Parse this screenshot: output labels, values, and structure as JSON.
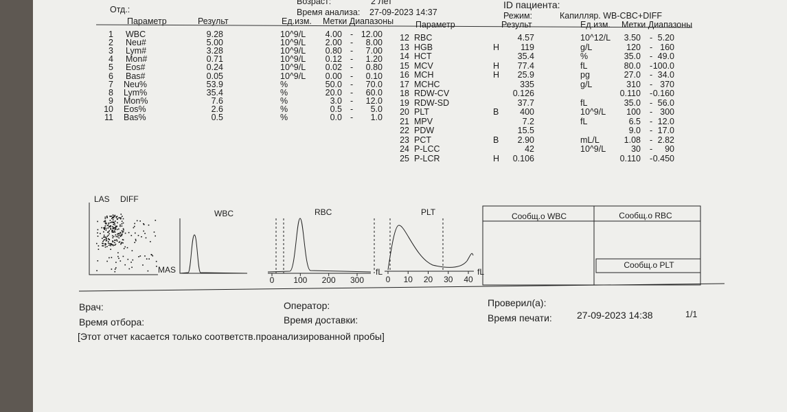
{
  "header": {
    "age_label": "Возраст:",
    "age": "2 Лет",
    "patient_id_label": "ID пациента:",
    "dept_label": "Отд.:",
    "analysis_time_label": "Время анализа:",
    "analysis_time": "27-09-2023 14:37",
    "mode_label": "Режим:",
    "mode": "Капилляр. WB-CBC+DIFF"
  },
  "columns": [
    "Параметр",
    "Результ",
    "Ед.изм.",
    "Метки Диапазоны"
  ],
  "range_sep": "-",
  "results_left": [
    {
      "no": 1,
      "name": "WBC",
      "result": "9.28",
      "unit": "10^9/L",
      "low": "4.00",
      "high": "12.00"
    },
    {
      "no": 2,
      "name": "Neu#",
      "result": "5.00",
      "unit": "10^9/L",
      "low": "2.00",
      "high": "8.00"
    },
    {
      "no": 3,
      "name": "Lym#",
      "result": "3.28",
      "unit": "10^9/L",
      "low": "0.80",
      "high": "7.00"
    },
    {
      "no": 4,
      "name": "Mon#",
      "result": "0.71",
      "unit": "10^9/L",
      "low": "0.12",
      "high": "1.20"
    },
    {
      "no": 5,
      "name": "Eos#",
      "result": "0.24",
      "unit": "10^9/L",
      "low": "0.02",
      "high": "0.80"
    },
    {
      "no": 6,
      "name": "Bas#",
      "result": "0.05",
      "unit": "10^9/L",
      "low": "0.00",
      "high": "0.10"
    },
    {
      "no": 7,
      "name": "Neu%",
      "result": "53.9",
      "unit": "%",
      "low": "50.0",
      "high": "70.0"
    },
    {
      "no": 8,
      "name": "Lym%",
      "result": "35.4",
      "unit": "%",
      "low": "20.0",
      "high": "60.0"
    },
    {
      "no": 9,
      "name": "Mon%",
      "result": "7.6",
      "unit": "%",
      "low": "3.0",
      "high": "12.0"
    },
    {
      "no": 10,
      "name": "Eos%",
      "result": "2.6",
      "unit": "%",
      "low": "0.5",
      "high": "5.0"
    },
    {
      "no": 11,
      "name": "Bas%",
      "result": "0.5",
      "unit": "%",
      "low": "0.0",
      "high": "1.0"
    }
  ],
  "results_right": [
    {
      "no": 12,
      "name": "RBC",
      "result": "4.57",
      "unit": "10^12/L",
      "low": "3.50",
      "high": "5.20"
    },
    {
      "no": 13,
      "name": "HGB",
      "flag": "H",
      "result": "119",
      "unit": "g/L",
      "low": "120",
      "high": "160"
    },
    {
      "no": 14,
      "name": "HCT",
      "result": "35.4",
      "unit": "%",
      "low": "35.0",
      "high": "49.0"
    },
    {
      "no": 15,
      "name": "MCV",
      "flag": "H",
      "result": "77.4",
      "unit": "fL",
      "low": "80.0",
      "high": "100.0"
    },
    {
      "no": 16,
      "name": "MCH",
      "flag": "H",
      "result": "25.9",
      "unit": "pg",
      "low": "27.0",
      "high": "34.0"
    },
    {
      "no": 17,
      "name": "MCHC",
      "result": "335",
      "unit": "g/L",
      "low": "310",
      "high": "370"
    },
    {
      "no": 18,
      "name": "RDW-CV",
      "result": "0.126",
      "low": "0.110",
      "high": "0.160"
    },
    {
      "no": 19,
      "name": "RDW-SD",
      "result": "37.7",
      "unit": "fL",
      "low": "35.0",
      "high": "56.0"
    },
    {
      "no": 20,
      "name": "PLT",
      "flag": "B",
      "result": "400",
      "unit": "10^9/L",
      "low": "100",
      "high": "300"
    },
    {
      "no": 21,
      "name": "MPV",
      "result": "7.2",
      "unit": "fL",
      "low": "6.5",
      "high": "12.0"
    },
    {
      "no": 22,
      "name": "PDW",
      "result": "15.5",
      "low": "9.0",
      "high": "17.0"
    },
    {
      "no": 23,
      "name": "PCT",
      "flag": "B",
      "result": "2.90",
      "unit": "mL/L",
      "low": "1.08",
      "high": "2.82"
    },
    {
      "no": 24,
      "name": "P-LCC",
      "result": "42",
      "unit": "10^9/L",
      "low": "30",
      "high": "90"
    },
    {
      "no": 25,
      "name": "P-LCR",
      "flag": "H",
      "result": "0.106",
      "low": "0.110",
      "high": "0.450"
    }
  ],
  "plots": {
    "scatter": {
      "y_label": "LAS",
      "title": "DIFF",
      "x_label": "MAS"
    },
    "wbc": {
      "title": "WBC"
    },
    "rbc": {
      "title": "RBC",
      "unit": "fL",
      "ticks": [
        0,
        100,
        200,
        300
      ]
    },
    "plt": {
      "title": "PLT",
      "unit": "fL",
      "ticks": [
        0,
        10,
        20,
        30,
        40
      ]
    }
  },
  "messages": {
    "wbc": "Сообщ.о WBC",
    "rbc": "Сообщ.о RBC",
    "plt": "Сообщ.о PLT"
  },
  "footer": {
    "doctor_label": "Врач:",
    "operator_label": "Оператор:",
    "checked_label": "Проверил(а):",
    "sampling_label": "Время отбора:",
    "delivery_label": "Время доставки:",
    "print_label": "Время печати:",
    "print_time": "27-09-2023 14:38",
    "page": "1/1",
    "note": "[Этот отчет касается только соответств.проанализированной пробы]"
  }
}
